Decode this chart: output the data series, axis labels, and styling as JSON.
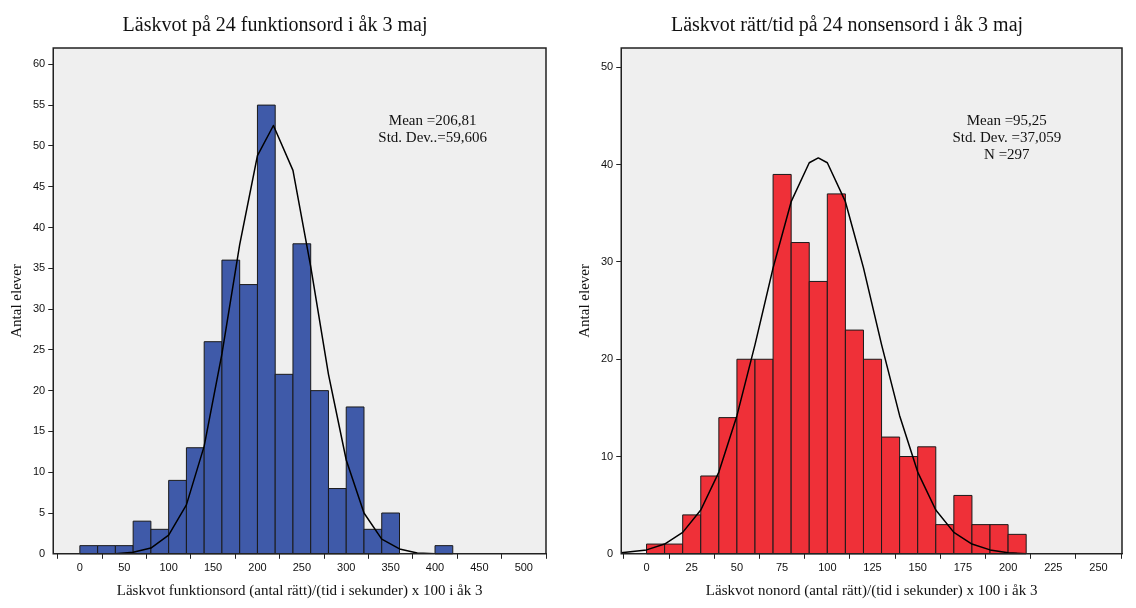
{
  "chart_data": [
    {
      "type": "histogram",
      "title": "Läskvot på 24 funktionsord i åk 3 maj",
      "xlabel": "Läskvot funktionsord (antal rätt)/(tid i sekunder) x 100 i åk 3",
      "ylabel": "Antal elever",
      "bins": [
        0,
        20,
        40,
        60,
        80,
        100,
        120,
        140,
        160,
        180,
        200,
        220,
        240,
        260,
        280,
        300,
        320,
        340,
        360,
        380,
        400,
        420
      ],
      "values": [
        1,
        1,
        1,
        4,
        3,
        9,
        13,
        26,
        36,
        33,
        55,
        22,
        38,
        20,
        8,
        18,
        3,
        5,
        0,
        0,
        1
      ],
      "color": "#3f5aa9",
      "xlim": [
        -30,
        525
      ],
      "ylim": [
        0,
        62
      ],
      "xticks": [
        0,
        50,
        100,
        150,
        200,
        250,
        300,
        350,
        400,
        450,
        500
      ],
      "yticks": [
        0,
        5,
        10,
        15,
        20,
        25,
        30,
        35,
        40,
        45,
        50,
        55,
        60
      ],
      "grid": false,
      "legend": false,
      "marker": "none",
      "annotations": [
        "Mean =206,81",
        "Std. Dev..=59,606"
      ],
      "series": [
        {
          "type": "line",
          "color": "#000000",
          "x": [
            0,
            20,
            40,
            60,
            80,
            100,
            120,
            140,
            160,
            180,
            200,
            218,
            240,
            260,
            280,
            300,
            320,
            340,
            360,
            380,
            400,
            420
          ],
          "values": [
            0.0,
            0.0,
            0.0,
            0.2,
            0.7,
            2.3,
            6.0,
            13.2,
            24.5,
            37.9,
            48.8,
            52.5,
            47.0,
            35.2,
            22.0,
            11.5,
            5.0,
            1.8,
            0.6,
            0.1,
            0.0,
            0.0
          ]
        }
      ]
    },
    {
      "type": "histogram",
      "title": "Läskvot rätt/tid på 24 nonsensord i åk 3 maj",
      "xlabel": "Läskvot nonord (antal rätt)/(tid i sekunder) x 100 i åk 3",
      "ylabel": "Antal elever",
      "bins": [
        0,
        10,
        20,
        30,
        40,
        50,
        60,
        70,
        80,
        90,
        100,
        110,
        120,
        130,
        140,
        150,
        160,
        170,
        180,
        190,
        200,
        210
      ],
      "values": [
        1,
        1,
        4,
        8,
        14,
        20,
        20,
        39,
        32,
        28,
        37,
        23,
        20,
        12,
        10,
        11,
        3,
        6,
        3,
        3,
        2
      ],
      "color": "#ef3038",
      "xlim": [
        -14,
        263
      ],
      "ylim": [
        0,
        52
      ],
      "xticks": [
        0,
        25,
        50,
        75,
        100,
        125,
        150,
        175,
        200,
        225,
        250
      ],
      "yticks": [
        0,
        10,
        20,
        30,
        40,
        50
      ],
      "grid": false,
      "legend": false,
      "marker": "none",
      "annotations": [
        "Mean =95,25",
        "Std. Dev. =37,059",
        "N =297"
      ],
      "series": [
        {
          "type": "line",
          "color": "#000000",
          "x": [
            -14,
            0,
            10,
            20,
            30,
            40,
            50,
            60,
            70,
            80,
            90,
            95,
            100,
            110,
            120,
            130,
            140,
            150,
            160,
            170,
            180,
            190,
            200,
            210,
            230,
            260
          ],
          "values": [
            0.1,
            0.4,
            1.0,
            2.2,
            4.5,
            8.4,
            14.2,
            21.5,
            29.4,
            36.2,
            40.2,
            40.7,
            40.2,
            36.2,
            29.4,
            21.5,
            14.2,
            8.4,
            4.5,
            2.2,
            1.0,
            0.4,
            0.1,
            0.0,
            0.0,
            0.0
          ]
        }
      ]
    }
  ]
}
